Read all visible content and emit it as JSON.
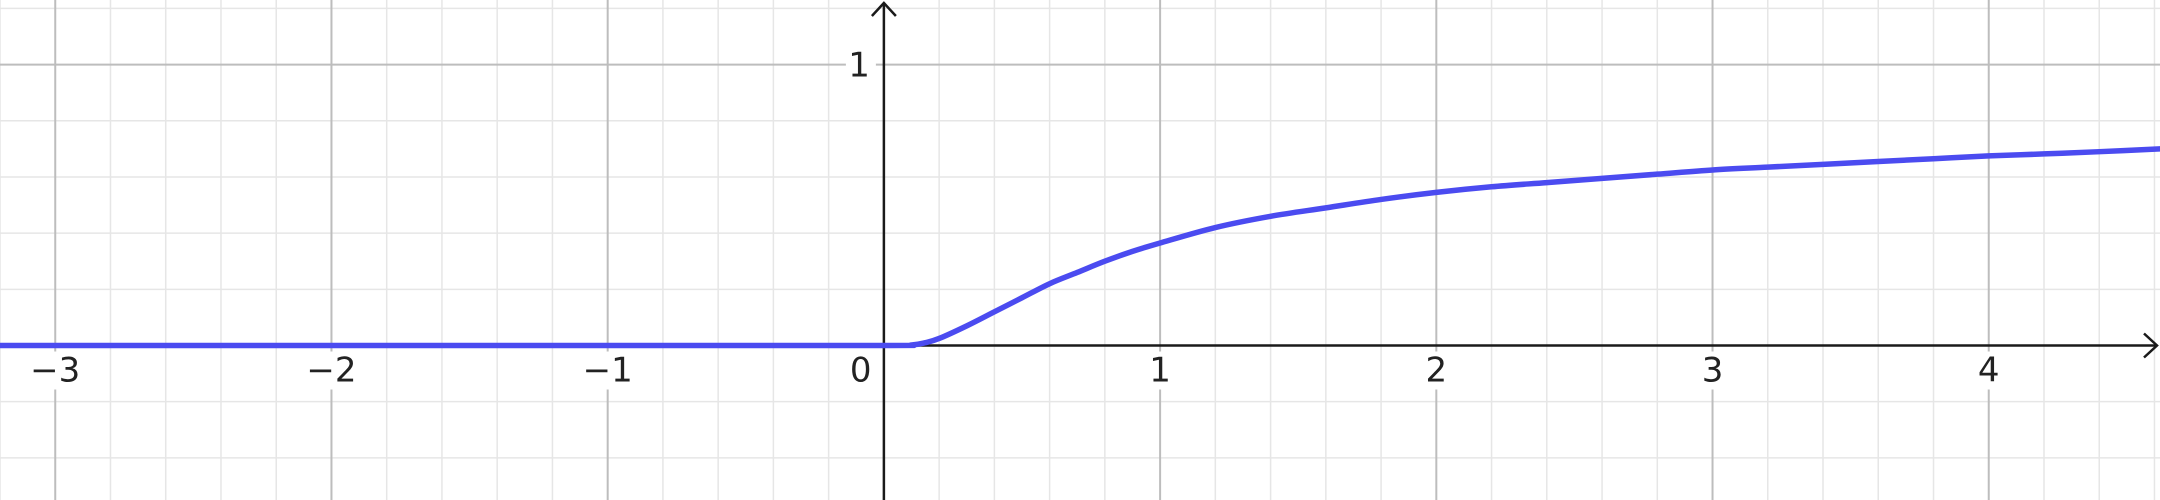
{
  "chart_data": {
    "type": "line",
    "title": "",
    "xlabel": "",
    "ylabel": "",
    "xlim": [
      -3.2,
      4.62
    ],
    "ylim": [
      -0.55,
      1.23
    ],
    "grid": true,
    "x_major_ticks": [
      -3,
      -2,
      -1,
      0,
      1,
      2,
      3,
      4
    ],
    "x_tick_labels": [
      "−3",
      "−2",
      "−1",
      "0",
      "1",
      "2",
      "3",
      "4"
    ],
    "y_major_ticks": [
      1
    ],
    "y_tick_labels": [
      "1"
    ],
    "series": [
      {
        "color": "#4b4bf0",
        "points": [
          [
            -3.2,
            0
          ],
          [
            -2,
            0
          ],
          [
            -1,
            0
          ],
          [
            0,
            0
          ],
          [
            0.1,
            0.002
          ],
          [
            0.15,
            0.01
          ],
          [
            0.2,
            0.025
          ],
          [
            0.3,
            0.07
          ],
          [
            0.4,
            0.12
          ],
          [
            0.5,
            0.17
          ],
          [
            0.6,
            0.22
          ],
          [
            0.7,
            0.26
          ],
          [
            0.8,
            0.3
          ],
          [
            0.9,
            0.335
          ],
          [
            1.0,
            0.365
          ],
          [
            1.2,
            0.42
          ],
          [
            1.4,
            0.46
          ],
          [
            1.6,
            0.49
          ],
          [
            1.8,
            0.52
          ],
          [
            2.0,
            0.545
          ],
          [
            2.2,
            0.565
          ],
          [
            2.4,
            0.58
          ],
          [
            2.6,
            0.595
          ],
          [
            2.8,
            0.61
          ],
          [
            3.0,
            0.625
          ],
          [
            3.2,
            0.635
          ],
          [
            3.4,
            0.645
          ],
          [
            3.6,
            0.655
          ],
          [
            3.8,
            0.665
          ],
          [
            4.0,
            0.675
          ],
          [
            4.2,
            0.682
          ],
          [
            4.4,
            0.69
          ],
          [
            4.62,
            0.7
          ]
        ]
      }
    ]
  }
}
